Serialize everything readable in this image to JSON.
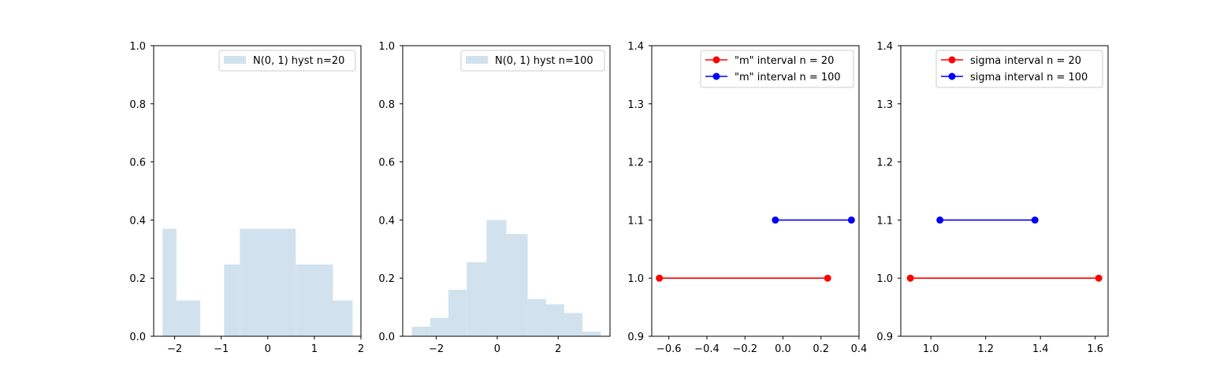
{
  "chart_data": [
    {
      "type": "bar",
      "bins": [
        {
          "x0": -2.26,
          "x1": -1.96,
          "value": 0.37
        },
        {
          "x0": -1.96,
          "x1": -1.45,
          "value": 0.123
        },
        {
          "x0": -1.45,
          "x1": -0.94,
          "value": 0.0
        },
        {
          "x0": -0.94,
          "x1": -0.6,
          "value": 0.247
        },
        {
          "x0": -0.6,
          "x1": 0.6,
          "value": 0.37
        },
        {
          "x0": 0.6,
          "x1": 1.4,
          "value": 0.247
        },
        {
          "x0": 1.4,
          "x1": 1.82,
          "value": 0.123
        }
      ],
      "series": [
        {
          "name": "N(0, 1) hyst n=20",
          "color": "#d1e2ee"
        }
      ],
      "xlim": [
        -2.45,
        2.0
      ],
      "ylim": [
        0,
        1.0
      ],
      "xticks": [
        -2,
        -1,
        0,
        1,
        2
      ],
      "xtick_labels": [
        "−2",
        "−1",
        "0",
        "1",
        "2"
      ],
      "yticks": [
        0,
        0.2,
        0.4,
        0.6,
        0.8,
        1.0
      ],
      "ytick_labels": [
        "0.0",
        "0.2",
        "0.4",
        "0.6",
        "0.8",
        "1.0"
      ],
      "legend": "top-right"
    },
    {
      "type": "bar",
      "bins": [
        {
          "x0": -2.8,
          "x1": -2.2,
          "value": 0.033
        },
        {
          "x0": -2.2,
          "x1": -1.6,
          "value": 0.063
        },
        {
          "x0": -1.6,
          "x1": -1.0,
          "value": 0.16
        },
        {
          "x0": -1.0,
          "x1": -0.35,
          "value": 0.255
        },
        {
          "x0": -0.35,
          "x1": 0.3,
          "value": 0.4
        },
        {
          "x0": 0.3,
          "x1": 1.0,
          "value": 0.352
        },
        {
          "x0": 1.0,
          "x1": 1.6,
          "value": 0.128
        },
        {
          "x0": 1.6,
          "x1": 2.2,
          "value": 0.11
        },
        {
          "x0": 2.2,
          "x1": 2.8,
          "value": 0.08
        },
        {
          "x0": 2.8,
          "x1": 3.4,
          "value": 0.016
        }
      ],
      "series": [
        {
          "name": "N(0, 1) hyst n=100",
          "color": "#d1e2ee"
        }
      ],
      "xlim": [
        -3.1,
        3.7
      ],
      "ylim": [
        0,
        1.0
      ],
      "xticks": [
        -2,
        0,
        2
      ],
      "xtick_labels": [
        "−2",
        "0",
        "2"
      ],
      "yticks": [
        0,
        0.2,
        0.4,
        0.6,
        0.8,
        1.0
      ],
      "ytick_labels": [
        "0.0",
        "0.2",
        "0.4",
        "0.6",
        "0.8",
        "1.0"
      ],
      "legend": "top-right"
    },
    {
      "type": "line",
      "series": [
        {
          "name": "\"m\" interval n = 20",
          "color": "#ff0000",
          "x": [
            -0.65,
            0.235
          ],
          "y": [
            1.0,
            1.0
          ]
        },
        {
          "name": "\"m\" interval n = 100",
          "color": "#0000ff",
          "x": [
            -0.04,
            0.36
          ],
          "y": [
            1.1,
            1.1
          ]
        }
      ],
      "xlim": [
        -0.69,
        0.4
      ],
      "ylim": [
        0.9,
        1.4
      ],
      "xticks": [
        -0.6,
        -0.4,
        -0.2,
        0.0,
        0.2,
        0.4
      ],
      "xtick_labels": [
        "−0.6",
        "−0.4",
        "−0.2",
        "0.0",
        "0.2",
        "0.4"
      ],
      "yticks": [
        0.9,
        1.0,
        1.1,
        1.2,
        1.3,
        1.4
      ],
      "ytick_labels": [
        "0.9",
        "1.0",
        "1.1",
        "1.2",
        "1.3",
        "1.4"
      ],
      "legend": "top-right"
    },
    {
      "type": "line",
      "series": [
        {
          "name": "sigma interval n = 20",
          "color": "#ff0000",
          "x": [
            0.925,
            1.613
          ],
          "y": [
            1.0,
            1.0
          ]
        },
        {
          "name": "sigma interval n = 100",
          "color": "#0000ff",
          "x": [
            1.033,
            1.38
          ],
          "y": [
            1.1,
            1.1
          ]
        }
      ],
      "xlim": [
        0.89,
        1.647
      ],
      "ylim": [
        0.9,
        1.4
      ],
      "xticks": [
        1.0,
        1.2,
        1.4,
        1.6
      ],
      "xtick_labels": [
        "1.0",
        "1.2",
        "1.4",
        "1.6"
      ],
      "yticks": [
        0.9,
        1.0,
        1.1,
        1.2,
        1.3,
        1.4
      ],
      "ytick_labels": [
        "0.9",
        "1.0",
        "1.1",
        "1.2",
        "1.3",
        "1.4"
      ],
      "legend": "top-right"
    }
  ]
}
